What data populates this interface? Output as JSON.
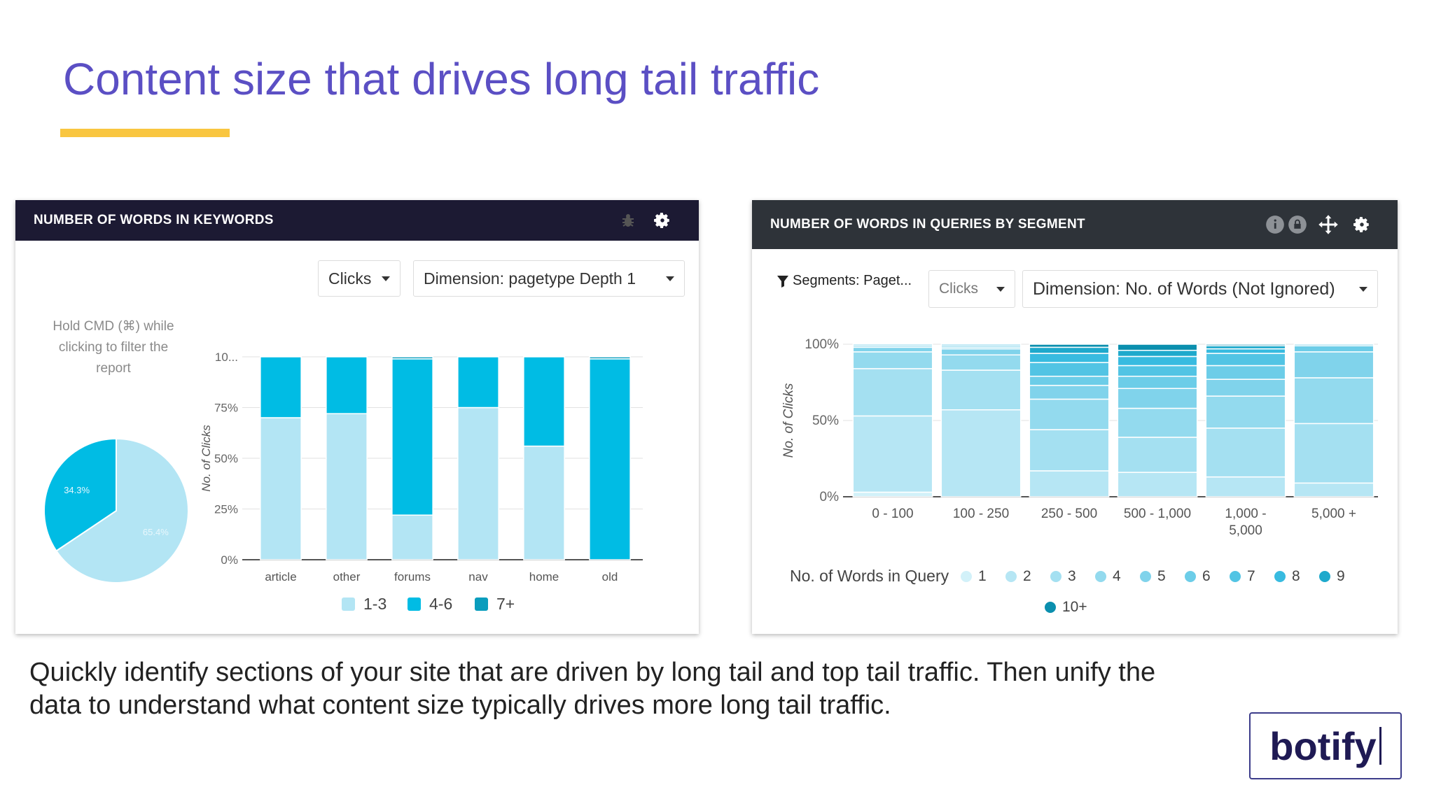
{
  "slide": {
    "title": "Content size that drives long tail traffic",
    "accent_color": "#f9c640",
    "title_color": "#5b4fc4",
    "caption_line1": "Quickly identify sections of your site that are driven by long tail and top tail traffic. Then unify the",
    "caption_line2": "data to understand what content size typically drives more long tail traffic.",
    "logo": "botify"
  },
  "panel1": {
    "title": "NUMBER OF WORDS IN KEYWORDS",
    "header_color": "#1c1a33",
    "icons": [
      "bug-icon",
      "gear-icon"
    ],
    "metric_dropdown": "Clicks",
    "dimension_dropdown": "Dimension: pagetype Depth 1",
    "hint": "Hold CMD (⌘) while clicking to filter the report"
  },
  "panel2": {
    "title": "NUMBER OF WORDS IN QUERIES BY SEGMENT",
    "header_color": "#2e3339",
    "icons": [
      "info-icon",
      "lock-icon",
      "move-icon",
      "gear-icon"
    ],
    "segments_label": "Segments: Paget...",
    "metric_dropdown": "Clicks",
    "dimension_dropdown": "Dimension: No. of Words (Not Ignored)"
  },
  "chart_data": [
    {
      "type": "pie",
      "labels": [
        "1-3",
        "4-6"
      ],
      "values": [
        65.4,
        34.3
      ],
      "value_labels": [
        "65.4%",
        "34.3%"
      ],
      "colors": [
        "#b3e5f4",
        "#00bce4"
      ]
    },
    {
      "type": "bar",
      "stacked": true,
      "ylabel": "No. of Clicks",
      "yticks": [
        "0%",
        "25%",
        "50%",
        "75%",
        "10..."
      ],
      "ylim": [
        0,
        100
      ],
      "categories": [
        "article",
        "other",
        "forums",
        "nav",
        "home",
        "old"
      ],
      "series": [
        {
          "name": "1-3",
          "color": "#b3e5f4",
          "values": [
            70,
            72,
            22,
            75,
            56,
            0
          ]
        },
        {
          "name": "4-6",
          "color": "#00bce4",
          "values": [
            30,
            28,
            77,
            25,
            44,
            99
          ]
        },
        {
          "name": "7+",
          "color": "#0a9dbd",
          "values": [
            0,
            0,
            1,
            0,
            0,
            1
          ]
        }
      ],
      "legend_position": "bottom"
    },
    {
      "type": "bar",
      "stacked": true,
      "ylabel": "No. of Clicks",
      "yticks": [
        "0%",
        "50%",
        "100%"
      ],
      "ylim": [
        0,
        100
      ],
      "categories": [
        "0 - 100",
        "100 - 250",
        "250 - 500",
        "500 - 1,000",
        "1,000 - 5,000",
        "5,000 +"
      ],
      "legend_title": "No. of Words in Query",
      "series": [
        {
          "name": "1",
          "color": "#d2f1f9",
          "values": [
            3,
            0,
            0,
            0,
            0,
            0
          ]
        },
        {
          "name": "2",
          "color": "#b6e6f4",
          "values": [
            50,
            57,
            17,
            16,
            13,
            9
          ]
        },
        {
          "name": "3",
          "color": "#a4e0f1",
          "values": [
            31,
            26,
            27,
            23,
            32,
            39
          ]
        },
        {
          "name": "4",
          "color": "#93daee",
          "values": [
            11,
            10,
            20,
            19,
            21,
            30
          ]
        },
        {
          "name": "5",
          "color": "#80d3eb",
          "values": [
            3,
            4,
            9,
            13,
            11,
            17
          ]
        },
        {
          "name": "6",
          "color": "#6ccde8",
          "values": [
            1,
            1,
            6,
            8,
            9,
            4
          ]
        },
        {
          "name": "7",
          "color": "#52c4e4",
          "values": [
            1,
            1,
            9,
            7,
            8,
            1
          ]
        },
        {
          "name": "8",
          "color": "#38bbe0",
          "values": [
            0,
            1,
            6,
            6,
            3,
            0
          ]
        },
        {
          "name": "9",
          "color": "#1ea9cc",
          "values": [
            0,
            0,
            4,
            4,
            2,
            0
          ]
        },
        {
          "name": "10+",
          "color": "#0b8fae",
          "values": [
            0,
            0,
            2,
            4,
            1,
            0
          ]
        }
      ],
      "legend_position": "bottom"
    }
  ]
}
